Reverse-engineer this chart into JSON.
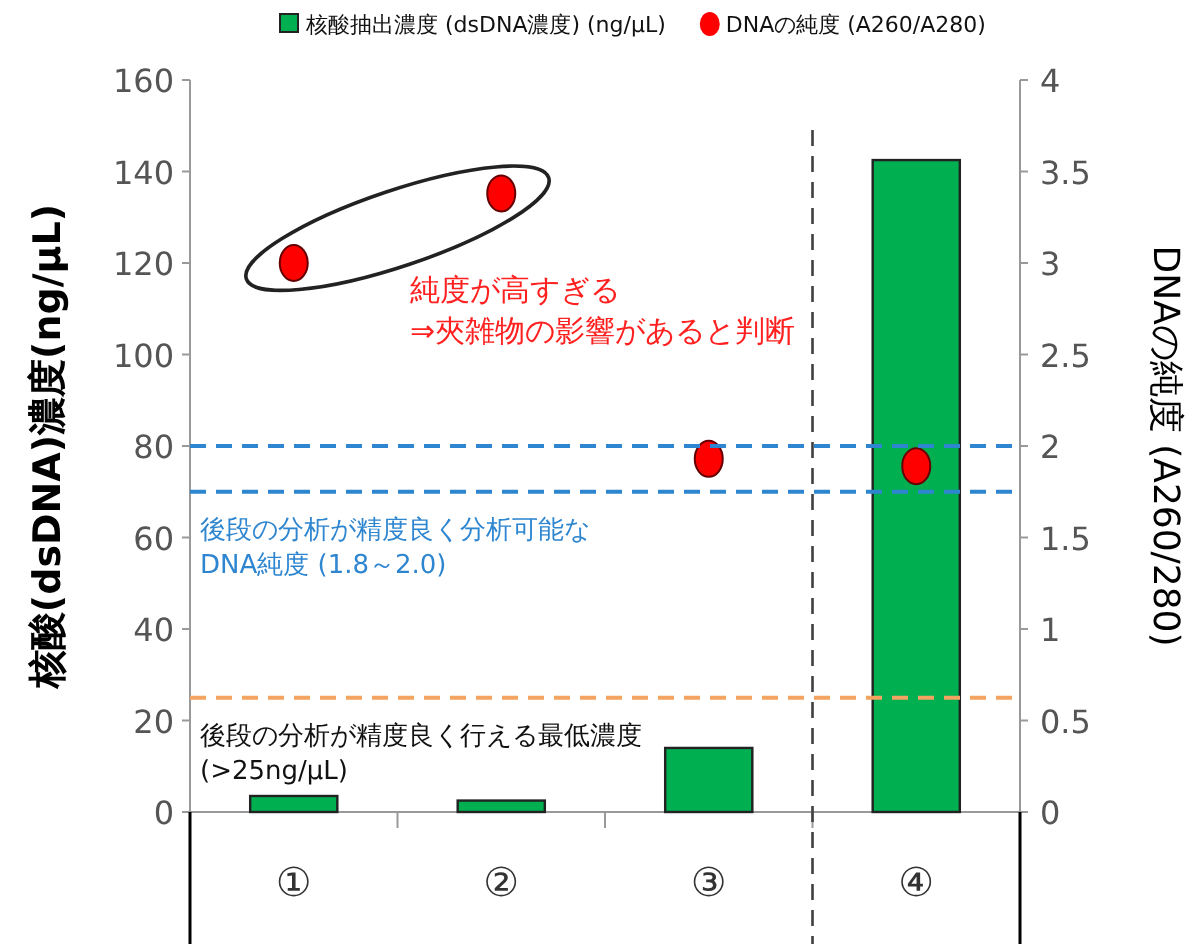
{
  "chart_data": {
    "type": "bar",
    "categories": [
      "①",
      "②",
      "③",
      "④"
    ],
    "ylabel": "核酸(dsDNA)濃度(ng/μL)",
    "y2label": "DNAの純度 (A260/280)",
    "series": [
      {
        "name": "核酸抽出濃度 (dsDNA濃度) (ng/μL)",
        "color": "#00b050",
        "values": [
          3.5,
          2.5,
          14,
          142.5
        ]
      },
      {
        "name": "DNAの純度 (A260/A280)",
        "type": "scatter",
        "axis": "y2",
        "marker": "circle",
        "color": "#ff0000",
        "values": [
          3.0,
          3.38,
          1.93,
          1.89
        ]
      }
    ],
    "ylim": [
      0,
      160
    ],
    "yticks": [
      0,
      20,
      40,
      60,
      80,
      100,
      120,
      140,
      160
    ],
    "y2lim": [
      0,
      4
    ],
    "y2ticks": [
      0,
      0.5,
      1,
      1.5,
      2,
      2.5,
      3,
      3.5,
      4
    ],
    "ref_lines": [
      {
        "axis": "y2",
        "value": 2.0,
        "color": "#2e86d0",
        "line_style": "dashed"
      },
      {
        "axis": "y2",
        "value": 1.75,
        "color": "#2e86d0",
        "line_style": "dashed",
        "label": "後段の分析が精度良く分析可能な\nDNA純度 (1.8～2.0)"
      },
      {
        "axis": "y",
        "value": 25,
        "color": "#f4a460",
        "line_style": "dashed",
        "label": "後段の分析が精度良く行える最低濃度\n(>25ng/μL)"
      }
    ],
    "annotations": [
      "純度が高すぎる\n⇒夾雑物の影響があると判断"
    ],
    "legend": "top",
    "grid": false
  }
}
